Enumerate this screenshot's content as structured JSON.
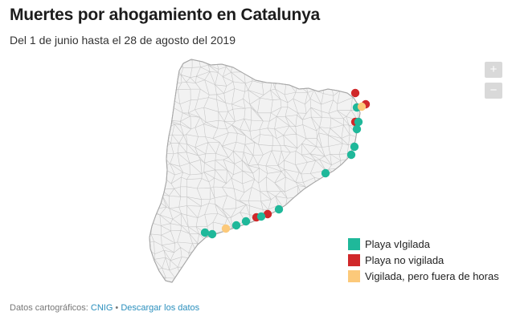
{
  "header": {
    "title": "Muertes por ahogamiento en Catalunya",
    "subtitle": "Del 1 de junio hasta el 28 de agosto del 2019"
  },
  "zoom": {
    "in_label": "+",
    "out_label": "−"
  },
  "colors": {
    "vigilada": "#1fb89a",
    "no_vigilada": "#d0282a",
    "fuera_horas": "#fcc97a",
    "land": "#f2f2f2",
    "border": "#bdbdbd"
  },
  "legend": {
    "items": [
      {
        "label": "Playa vIgilada",
        "color": "#1fb89a"
      },
      {
        "label": "Playa no vigilada",
        "color": "#d0282a"
      },
      {
        "label": "Vigilada, pero fuera de horas",
        "color": "#fcc97a"
      }
    ]
  },
  "footer": {
    "prefix": "Datos cartográficos: ",
    "source_link": "CNIG",
    "separator": " • ",
    "download_link": "Descargar los datos"
  }
}
